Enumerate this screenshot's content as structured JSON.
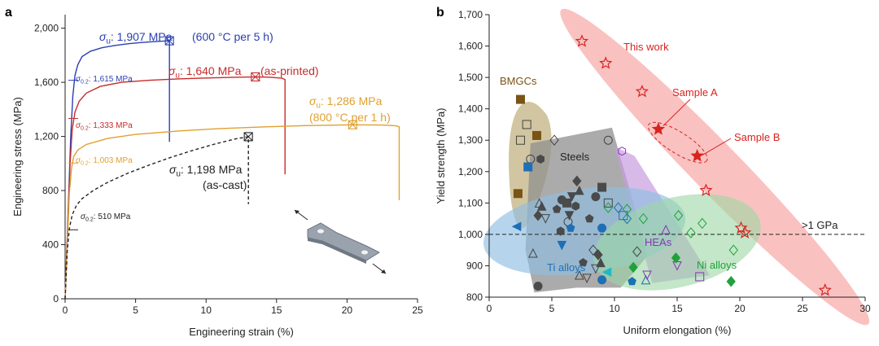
{
  "chart_data": [
    {
      "panel": "a",
      "type": "line",
      "title": "",
      "xlabel": "Engineering strain (%)",
      "ylabel": "Engineering stress (MPa)",
      "xlim": [
        0,
        25
      ],
      "ylim": [
        0,
        2100
      ],
      "xticks": [
        0,
        5,
        10,
        15,
        20,
        25
      ],
      "yticks": [
        0,
        400,
        800,
        1200,
        1600,
        2000
      ],
      "ytick_labels": [
        "0",
        "400",
        "800",
        "1,200",
        "1,600",
        "2,000"
      ],
      "grid": false,
      "series": [
        {
          "key": "heat600",
          "color": "#2b3fb0",
          "x": [
            0,
            0.4,
            0.55,
            0.7,
            0.9,
            1.2,
            1.8,
            2.6,
            3.5,
            4.5,
            5.5,
            6.5,
            7.4,
            7.4
          ],
          "y": [
            0,
            1200,
            1500,
            1650,
            1730,
            1790,
            1830,
            1855,
            1872,
            1885,
            1895,
            1902,
            1907,
            1160
          ],
          "yield_label": "σ0.2: 1,615 MPa",
          "uts_label": "σu: 1,907 MPa",
          "uts_note": "(600 °C per 5 h)",
          "uts_point": [
            7.4,
            1907
          ]
        },
        {
          "key": "printed",
          "color": "#c62c2c",
          "x": [
            0,
            0.35,
            0.5,
            0.7,
            1.0,
            1.5,
            2.5,
            4,
            6,
            8,
            10,
            12,
            13.5,
            14.5,
            15.4,
            15.6,
            15.6
          ],
          "y": [
            0,
            1000,
            1250,
            1380,
            1460,
            1520,
            1570,
            1600,
            1615,
            1625,
            1632,
            1637,
            1640,
            1638,
            1630,
            1620,
            920
          ],
          "yield_label": "σ0.2: 1,333 MPa",
          "uts_label": "σu: 1,640 MPa",
          "uts_note": "(as-printed)",
          "uts_point": [
            13.5,
            1640
          ]
        },
        {
          "key": "heat800",
          "color": "#e0a030",
          "x": [
            0,
            0.3,
            0.45,
            0.6,
            0.9,
            1.5,
            3,
            5,
            8,
            11,
            14,
            17,
            20.4,
            22.5,
            23.5,
            23.7,
            23.7
          ],
          "y": [
            0,
            780,
            960,
            1050,
            1100,
            1140,
            1185,
            1215,
            1240,
            1258,
            1270,
            1280,
            1286,
            1284,
            1278,
            1270,
            730
          ],
          "yield_label": "σ0.2: 1,003 MPa",
          "uts_label": "σu: 1,286 MPa",
          "uts_note": "(800 °C per 1 h)",
          "uts_point": [
            20.4,
            1286
          ]
        },
        {
          "key": "cast",
          "color": "#222222",
          "dashed": true,
          "x": [
            0,
            0.15,
            0.3,
            0.5,
            0.8,
            1.2,
            2,
            3,
            4.5,
            6,
            7.5,
            9,
            10.5,
            12,
            13.0,
            13.0,
            13.0
          ],
          "y": [
            0,
            350,
            520,
            620,
            690,
            740,
            800,
            860,
            930,
            990,
            1045,
            1095,
            1140,
            1180,
            1198,
            1198,
            700
          ],
          "yield_label": "σ0.2: 510 MPa",
          "uts_label": "σu: 1,198 MPa",
          "uts_note": "(as-cast)",
          "uts_point": [
            13.0,
            1198
          ]
        }
      ]
    },
    {
      "panel": "b",
      "type": "scatter",
      "title": "",
      "xlabel": "Uniform elongation (%)",
      "ylabel": "Yield strength (MPa)",
      "xlim": [
        0,
        30
      ],
      "ylim": [
        800,
        1700
      ],
      "xticks": [
        0,
        5,
        10,
        15,
        20,
        25,
        30
      ],
      "yticks": [
        800,
        900,
        1000,
        1100,
        1200,
        1300,
        1400,
        1500,
        1600,
        1700
      ],
      "ytick_labels": [
        "800",
        "900",
        "1,000",
        "1,100",
        "1,200",
        "1,300",
        "1,400",
        "1,500",
        "1,600",
        "1,700"
      ],
      "grid": false,
      "reference_line": {
        "y": 1000,
        "label": ">1 GPa"
      },
      "group_labels": {
        "this_work": "This work",
        "bmgc": "BMGCs",
        "steels": "Steels",
        "ti": "Ti alloys",
        "hea": "HEAs",
        "ni": "Ni alloys",
        "sample_a": "Sample A",
        "sample_b": "Sample B"
      },
      "this_work": [
        [
          7.4,
          1615
        ],
        [
          9.3,
          1545
        ],
        [
          12.2,
          1455
        ],
        [
          13.5,
          1335
        ],
        [
          16.6,
          1250
        ],
        [
          17.3,
          1140
        ],
        [
          20.1,
          1020
        ],
        [
          20.4,
          1005
        ],
        [
          26.8,
          822
        ]
      ],
      "sample_a": [
        13.5,
        1333
      ],
      "sample_b": [
        16.6,
        1252
      ],
      "bmgc": [
        [
          2.5,
          1430
        ],
        [
          3.8,
          1315
        ],
        [
          2.3,
          1130
        ]
      ],
      "steels_gray": [
        [
          3.0,
          1350
        ],
        [
          3.3,
          1240
        ],
        [
          4.0,
          1100
        ],
        [
          4.5,
          1050
        ],
        [
          5.2,
          1300
        ],
        [
          2.5,
          1300
        ],
        [
          9.5,
          1300
        ],
        [
          3.5,
          940
        ],
        [
          7.8,
          860
        ],
        [
          8.3,
          950
        ],
        [
          9.5,
          1100
        ],
        [
          6.3,
          1040
        ],
        [
          7.2,
          870
        ],
        [
          8.5,
          890
        ],
        [
          11.8,
          945
        ]
      ],
      "steels_dark": [
        [
          4.1,
          1240
        ],
        [
          3.9,
          1060
        ],
        [
          4.2,
          1090
        ],
        [
          5.4,
          1080
        ],
        [
          5.8,
          1110
        ],
        [
          6.2,
          1100
        ],
        [
          6.6,
          1120
        ],
        [
          6.9,
          1090
        ],
        [
          7.0,
          1170
        ],
        [
          7.2,
          1140
        ],
        [
          8.0,
          1050
        ],
        [
          8.5,
          1120
        ],
        [
          9.0,
          1150
        ],
        [
          6.4,
          1060
        ],
        [
          5.7,
          1010
        ],
        [
          8.7,
          935
        ],
        [
          8.9,
          910
        ],
        [
          7.5,
          910
        ],
        [
          3.9,
          835
        ]
      ],
      "ti": [
        [
          2.2,
          1025
        ],
        [
          3.1,
          1215
        ],
        [
          5.8,
          965
        ],
        [
          6.5,
          1020
        ],
        [
          9.0,
          1020
        ],
        [
          10.3,
          1085
        ],
        [
          10.7,
          1060
        ],
        [
          11.0,
          1050
        ],
        [
          9.4,
          880
        ],
        [
          9.0,
          855
        ],
        [
          11.4,
          850
        ],
        [
          12.5,
          855
        ]
      ],
      "hea": [
        [
          10.6,
          1265
        ],
        [
          12.6,
          870
        ],
        [
          14.1,
          1015
        ],
        [
          15.0,
          900
        ],
        [
          16.8,
          865
        ]
      ],
      "ni": [
        [
          9.5,
          1085
        ],
        [
          11.0,
          1080
        ],
        [
          12.3,
          1050
        ],
        [
          15.1,
          1060
        ],
        [
          16.1,
          1005
        ],
        [
          17.0,
          1035
        ],
        [
          19.5,
          950
        ],
        [
          11.5,
          895
        ],
        [
          14.9,
          925
        ],
        [
          19.3,
          850
        ]
      ],
      "colors": {
        "this_work": "#e0403a",
        "this_work_fill": "#f6a8a6",
        "bmgc": "#7a5414",
        "bmgc_fill": "#c6b889",
        "steels": "#555555",
        "steels_fill": "#8f8f8f",
        "ti": "#1e6fb5",
        "ti_fill": "#8fbfe2",
        "hea": "#8a35b5",
        "hea_fill": "#c89de0",
        "ni": "#1fa23a",
        "ni_fill": "#9bd7a3",
        "cyan": "#1fb8c7"
      }
    }
  ],
  "panel_labels": {
    "a": "a",
    "b": "b"
  }
}
